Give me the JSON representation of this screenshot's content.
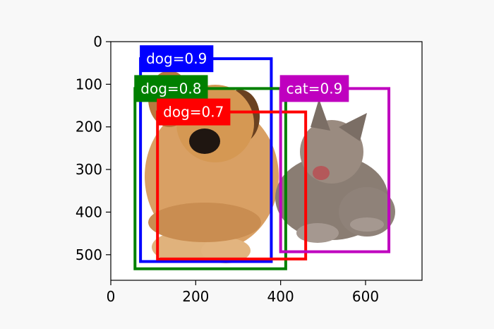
{
  "figure": {
    "background": "#f8f8f8",
    "axes_background": "#ffffff",
    "x_ticks": [
      0,
      200,
      400,
      600
    ],
    "y_ticks": [
      0,
      100,
      200,
      300,
      400,
      500
    ],
    "xlim": [
      0,
      733
    ],
    "ylim": [
      560,
      0
    ],
    "boxes": [
      {
        "label": "dog=0.9",
        "color": "#0000ff",
        "x1": 70,
        "y1": 40,
        "x2": 378,
        "y2": 516
      },
      {
        "label": "dog=0.8",
        "color": "#008000",
        "x1": 57,
        "y1": 110,
        "x2": 412,
        "y2": 533
      },
      {
        "label": "dog=0.7",
        "color": "#ff0000",
        "x1": 110,
        "y1": 165,
        "x2": 459,
        "y2": 510
      },
      {
        "label": "cat=0.9",
        "color": "#bf00bf",
        "x1": 400,
        "y1": 110,
        "x2": 655,
        "y2": 493
      }
    ]
  }
}
